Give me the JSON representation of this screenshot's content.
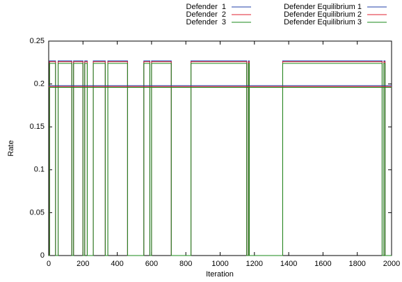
{
  "chart_data": {
    "type": "line",
    "x_label": "Iteration",
    "y_label": "Rate",
    "x": [
      0,
      5,
      5,
      40,
      40,
      55,
      55,
      135,
      135,
      145,
      145,
      200,
      200,
      210,
      210,
      225,
      225,
      260,
      260,
      330,
      330,
      345,
      345,
      460,
      460,
      555,
      555,
      590,
      590,
      600,
      600,
      715,
      715,
      830,
      830,
      1155,
      1155,
      1165,
      1165,
      1170,
      1170,
      1365,
      1365,
      1945,
      1945,
      1955,
      1955,
      1962,
      1962,
      2000
    ],
    "series": [
      {
        "name": "Defender  1",
        "color": "#1f3fa8",
        "values": [
          0,
          0,
          0.227,
          0.227,
          0,
          0,
          0.227,
          0.227,
          0,
          0,
          0.227,
          0.227,
          0,
          0,
          0.227,
          0.227,
          0,
          0,
          0.227,
          0.227,
          0,
          0,
          0.227,
          0.227,
          0,
          0,
          0.227,
          0.227,
          0,
          0,
          0.227,
          0.227,
          0,
          0,
          0.227,
          0.227,
          0,
          0,
          0.227,
          0.227,
          0,
          0,
          0.227,
          0.227,
          0,
          0,
          0.227,
          0.227,
          0,
          0
        ]
      },
      {
        "name": "Defender  2",
        "color": "#e0202f",
        "values": [
          0,
          0,
          0.226,
          0.226,
          0,
          0,
          0.226,
          0.226,
          0,
          0,
          0.226,
          0.226,
          0,
          0,
          0.226,
          0.226,
          0,
          0,
          0.226,
          0.226,
          0,
          0,
          0.226,
          0.226,
          0,
          0,
          0.226,
          0.226,
          0,
          0,
          0.226,
          0.226,
          0,
          0,
          0.226,
          0.226,
          0,
          0,
          0.226,
          0.226,
          0,
          0,
          0.226,
          0.226,
          0,
          0,
          0.226,
          0.226,
          0,
          0
        ]
      },
      {
        "name": "Defender  3",
        "color": "#1a8a1a",
        "values": [
          0,
          0,
          0.224,
          0.224,
          0,
          0,
          0.224,
          0.224,
          0,
          0,
          0.224,
          0.224,
          0,
          0,
          0.224,
          0.224,
          0,
          0,
          0.224,
          0.224,
          0,
          0,
          0.224,
          0.224,
          0,
          0,
          0.224,
          0.224,
          0,
          0,
          0.224,
          0.224,
          0,
          0,
          0.224,
          0.224,
          0,
          0,
          0.224,
          0.224,
          0,
          0,
          0.224,
          0.224,
          0,
          0,
          0.224,
          0.224,
          0,
          0
        ]
      },
      {
        "name": "Defender Equilibrium 1",
        "color": "#1f3fa8",
        "x": [
          0,
          2000
        ],
        "values": [
          0.198,
          0.198
        ]
      },
      {
        "name": "Defender Equilibrium 2",
        "color": "#e0202f",
        "x": [
          0,
          2000
        ],
        "values": [
          0.197,
          0.197
        ]
      },
      {
        "name": "Defender Equilibrium 3",
        "color": "#1a8a1a",
        "x": [
          0,
          2000
        ],
        "values": [
          0.196,
          0.196
        ]
      }
    ],
    "xlim": [
      0,
      2000
    ],
    "xticks": [
      0,
      200,
      400,
      600,
      800,
      1000,
      1200,
      1400,
      1600,
      1800,
      2000
    ],
    "ylim": [
      0,
      0.25
    ],
    "yticks": [
      0,
      0.05,
      0.1,
      0.15,
      0.2,
      0.25
    ],
    "legend": "top"
  }
}
